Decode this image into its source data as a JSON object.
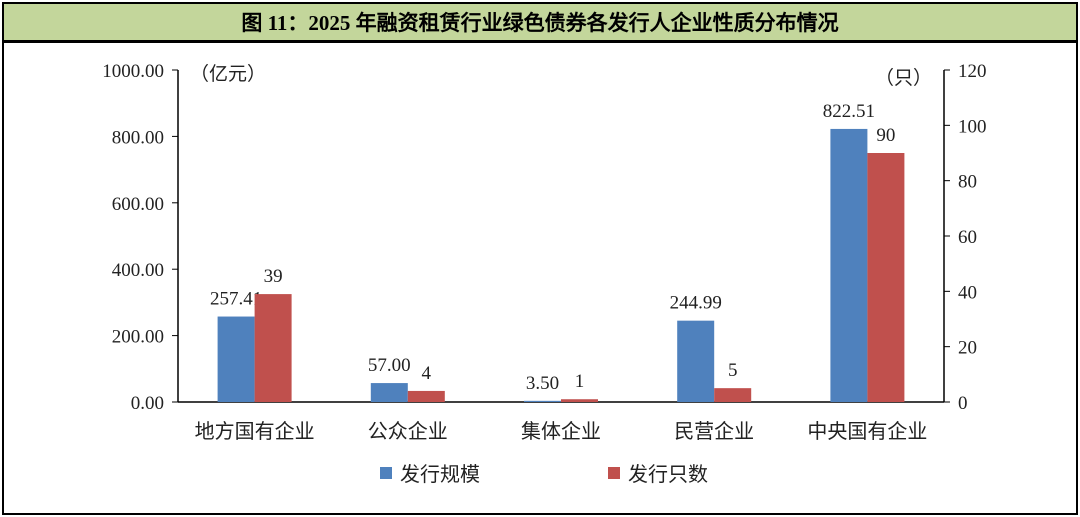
{
  "title": "图 11：2025 年融资租赁行业绿色债券各发行人企业性质分布情况",
  "chart_data": {
    "type": "bar",
    "title": "图 11：2025 年融资租赁行业绿色债券各发行人企业性质分布情况",
    "categories": [
      "地方国有企业",
      "公众企业",
      "集体企业",
      "民营企业",
      "中央国有企业"
    ],
    "series": [
      {
        "name": "发行规模",
        "axis": "left",
        "color": "#4f81bd",
        "values": [
          257.41,
          57.0,
          3.5,
          244.99,
          822.51
        ],
        "labels": [
          "257.41",
          "57.00",
          "3.50",
          "244.99",
          "822.51"
        ]
      },
      {
        "name": "发行只数",
        "axis": "right",
        "color": "#c0504d",
        "values": [
          39,
          4,
          1,
          5,
          90
        ],
        "labels": [
          "39",
          "4",
          "1",
          "5",
          "90"
        ]
      }
    ],
    "y_left": {
      "unit": "（亿元）",
      "ylim": [
        0,
        1000
      ],
      "ticks": [
        "0.00",
        "200.00",
        "400.00",
        "600.00",
        "800.00",
        "1000.00"
      ]
    },
    "y_right": {
      "unit": "（只）",
      "ylim": [
        0,
        120
      ],
      "ticks": [
        "0",
        "20",
        "40",
        "60",
        "80",
        "100",
        "120"
      ]
    },
    "grid": false,
    "legend": "bottom"
  }
}
